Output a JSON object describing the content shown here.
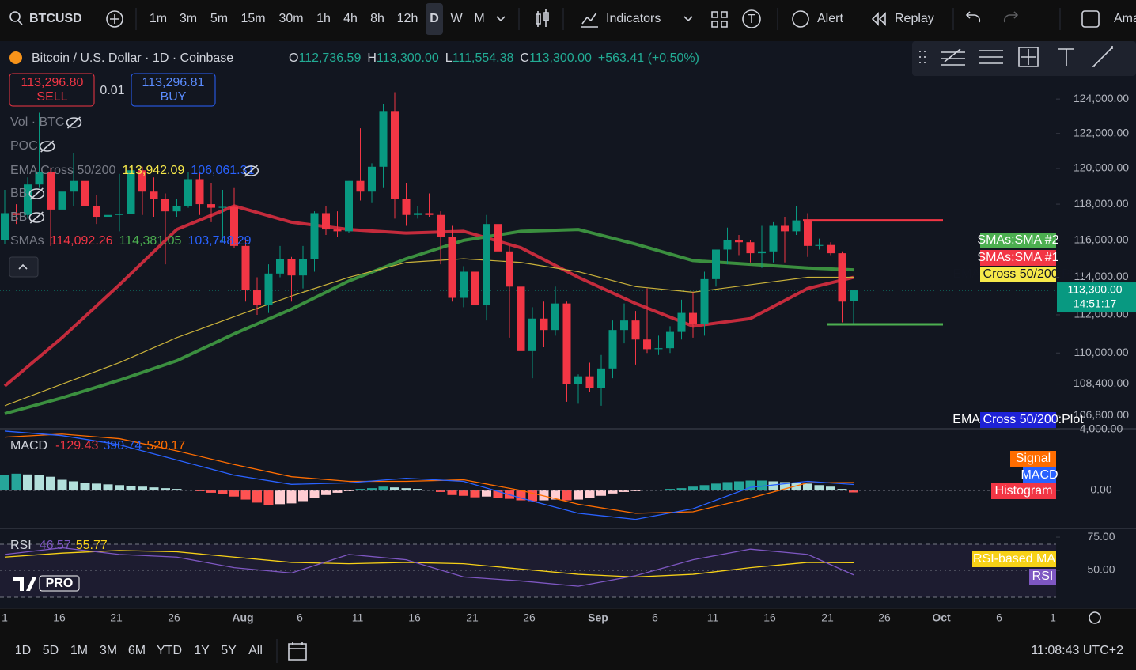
{
  "toolbar": {
    "symbol": "BTCUSD",
    "intervals": [
      "1m",
      "3m",
      "5m",
      "15m",
      "30m",
      "1h",
      "4h",
      "8h",
      "12h",
      "D",
      "W",
      "M"
    ],
    "active_interval": "D",
    "indicators": "Indicators",
    "alert": "Alert",
    "replay": "Replay",
    "account": "Ama"
  },
  "legend": {
    "title": "Bitcoin / U.S. Dollar · 1D · Coinbase",
    "ohlc": [
      {
        "label": "O",
        "value": "112,736.59"
      },
      {
        "label": "H",
        "value": "113,300.00"
      },
      {
        "label": "L",
        "value": "111,554.38"
      },
      {
        "label": "C",
        "value": "113,300.00"
      }
    ],
    "change": "+563.41 (+0.50%)"
  },
  "trade": {
    "sell_price": "113,296.80",
    "sell": "SELL",
    "spread": "0.01",
    "buy_price": "113,296.81",
    "buy": "BUY"
  },
  "indicators": [
    {
      "name": "Vol · BTC",
      "values": []
    },
    {
      "name": "POC",
      "values": []
    },
    {
      "name": "EMA Cross 50/200",
      "values": [
        {
          "text": "113,942.09",
          "color": "#f7e94a"
        },
        {
          "text": "106,061.31",
          "color": "#2962ff"
        }
      ]
    },
    {
      "name": "BB",
      "values": []
    },
    {
      "name": "BB",
      "values": []
    },
    {
      "name": "SMAs",
      "values": [
        {
          "text": "114,092.26",
          "color": "#f23645"
        },
        {
          "text": "114,381.05",
          "color": "#4caf50"
        },
        {
          "text": "103,748.29",
          "color": "#2962ff"
        }
      ]
    }
  ],
  "chart_data": [
    {
      "type": "candlestick",
      "log": true,
      "ylim": [
        106180,
        127430
      ],
      "yticks": [
        {
          "value": 124000,
          "label": "124,000.00"
        },
        {
          "value": 122000,
          "label": "122,000.00"
        },
        {
          "value": 120000,
          "label": "120,000.00"
        },
        {
          "value": 118000,
          "label": "118,000.00"
        },
        {
          "value": 116000,
          "label": "116,000.00"
        },
        {
          "value": 114000,
          "label": "114,000.00"
        },
        {
          "value": 112000,
          "label": "112,000.00"
        },
        {
          "value": 110000,
          "label": "110,000.00"
        },
        {
          "value": 108400,
          "label": "108,400.00"
        },
        {
          "value": 106800,
          "label": "106,800.00"
        }
      ],
      "up_color": "#089981",
      "down_color": "#f23645",
      "candles": [
        [
          116000,
          118800,
          115800,
          117500
        ],
        [
          117500,
          118000,
          116900,
          117400
        ],
        [
          117400,
          119500,
          117200,
          119100
        ],
        [
          119100,
          123200,
          118900,
          119800
        ],
        [
          119800,
          120000,
          115700,
          117700
        ],
        [
          117700,
          119800,
          115800,
          118700
        ],
        [
          118700,
          120900,
          117900,
          119300
        ],
        [
          119300,
          120700,
          117400,
          117900
        ],
        [
          117900,
          118500,
          116900,
          117300
        ],
        [
          117300,
          118800,
          116600,
          117400
        ],
        [
          117400,
          119700,
          116500,
          117450
        ],
        [
          117450,
          120200,
          116200,
          119900
        ],
        [
          119900,
          120100,
          117400,
          118700
        ],
        [
          118700,
          119500,
          117300,
          118300
        ],
        [
          118300,
          118600,
          114700,
          117600
        ],
        [
          117600,
          118300,
          117300,
          117900
        ],
        [
          117900,
          119800,
          117800,
          119400
        ],
        [
          119400,
          119800,
          117400,
          118000
        ],
        [
          118000,
          119200,
          117000,
          117800
        ],
        [
          117800,
          118800,
          115900,
          117850
        ],
        [
          117850,
          118900,
          115600,
          115700
        ],
        [
          115700,
          116100,
          112700,
          113300
        ],
        [
          113300,
          114000,
          112000,
          112500
        ],
        [
          112500,
          114700,
          112100,
          114200
        ],
        [
          114200,
          115700,
          114000,
          115000
        ],
        [
          115000,
          115100,
          112700,
          114100
        ],
        [
          114100,
          115700,
          113400,
          115000
        ],
        [
          115000,
          117600,
          114300,
          117500
        ],
        [
          117500,
          117900,
          116300,
          116600
        ],
        [
          116600,
          117600,
          116200,
          116500
        ],
        [
          116500,
          119300,
          116400,
          119300
        ],
        [
          119300,
          122300,
          118200,
          118700
        ],
        [
          118700,
          120300,
          118100,
          120100
        ],
        [
          120100,
          123700,
          118900,
          123300
        ],
        [
          123300,
          124400,
          117200,
          118300
        ],
        [
          118300,
          119200,
          116800,
          117400
        ],
        [
          117400,
          117900,
          117200,
          117500
        ],
        [
          117500,
          118600,
          117300,
          117400
        ],
        [
          117400,
          117600,
          114700,
          116200
        ],
        [
          116200,
          116800,
          112700,
          112900
        ],
        [
          112900,
          114600,
          112400,
          114300
        ],
        [
          114300,
          114600,
          112400,
          112500
        ],
        [
          112500,
          117400,
          111700,
          116900
        ],
        [
          116900,
          117000,
          114700,
          115400
        ],
        [
          115400,
          115700,
          110800,
          113500
        ],
        [
          113500,
          113700,
          109300,
          110100
        ],
        [
          110100,
          112400,
          108700,
          111800
        ],
        [
          111800,
          112700,
          110300,
          111200
        ],
        [
          111200,
          113500,
          110900,
          112600
        ],
        [
          112600,
          112700,
          107500,
          108400
        ],
        [
          108400,
          108900,
          107400,
          108800
        ],
        [
          108800,
          109500,
          108000,
          108200
        ],
        [
          108200,
          109900,
          107300,
          109200
        ],
        [
          109200,
          111700,
          108700,
          111200
        ],
        [
          111200,
          112600,
          110500,
          111700
        ],
        [
          111700,
          112200,
          109400,
          110700
        ],
        [
          110700,
          113400,
          110000,
          110200
        ],
        [
          110200,
          110900,
          109900,
          110250
        ],
        [
          110250,
          111400,
          110000,
          111100
        ],
        [
          111100,
          112800,
          110700,
          112100
        ],
        [
          112100,
          113200,
          110800,
          111500
        ],
        [
          111500,
          114300,
          110900,
          113900
        ],
        [
          113900,
          115500,
          113500,
          115500
        ],
        [
          115500,
          116700,
          114700,
          116000
        ],
        [
          116000,
          116300,
          115200,
          115900
        ],
        [
          115900,
          116000,
          114800,
          115300
        ],
        [
          115300,
          116800,
          114500,
          115400
        ],
        [
          115400,
          117000,
          114800,
          116800
        ],
        [
          116800,
          117300,
          114800,
          116500
        ],
        [
          116500,
          117900,
          116300,
          117100
        ],
        [
          117100,
          117500,
          115100,
          115700
        ],
        [
          115700,
          116100,
          115500,
          115750
        ],
        [
          115750,
          115900,
          115200,
          115300
        ],
        [
          115300,
          115400,
          111600,
          112700
        ],
        [
          112736.59,
          113300,
          111554.38,
          113300
        ]
      ],
      "series": [
        {
          "name": "SMAs:SMA #1",
          "color": "#c42b3c",
          "width": 4,
          "values": [
            108300,
            110800,
            113600,
            116600,
            117900,
            117000,
            116600,
            116400,
            116500,
            115600,
            114000,
            112600,
            111400,
            111800,
            113400,
            114000
          ]
        },
        {
          "name": "SMAs:SMA #2",
          "color": "#3b8f3f",
          "width": 4,
          "values": [
            106900,
            107700,
            108600,
            109600,
            111000,
            112300,
            113800,
            115000,
            116000,
            116500,
            116600,
            115800,
            114900,
            114700,
            114500,
            114400
          ]
        },
        {
          "name": "EMA Cross 50/200:Plot",
          "color": "#c9b13a",
          "width": 1.2,
          "values": [
            107300,
            108400,
            109500,
            110800,
            111900,
            113000,
            114000,
            114800,
            115000,
            114800,
            114300,
            113500,
            113200,
            113600,
            114000,
            114000
          ]
        }
      ],
      "axis_tags": [
        {
          "label": "SMAs:SMA #2",
          "color": "#4caf50",
          "text_color": "#ffffff"
        },
        {
          "label": "SMAs:SMA #1",
          "color": "#f23645",
          "text_color": "#ffffff"
        },
        {
          "label": "EMA Cross 50/200:Plot",
          "color": "#f7e94a",
          "text_color": "#131722"
        },
        {
          "label": "EMA Cross 50/200:Plot",
          "color": "#1e22d6",
          "text_color": "#ffffff"
        }
      ],
      "drawings": [
        {
          "value": 117100,
          "color": "#f23645"
        },
        {
          "value": 111500,
          "color": "#4caf50"
        }
      ],
      "current_price": {
        "value": 113300,
        "label": "113,300.00"
      },
      "countdown": "14:51:17"
    },
    {
      "type": "macd",
      "title": "MACD",
      "legend_values": [
        {
          "text": "-129.43",
          "color": "#f23645"
        },
        {
          "text": "390.74",
          "color": "#2962ff"
        },
        {
          "text": "520.17",
          "color": "#ff6d00"
        }
      ],
      "ylim": [
        -2440,
        4000
      ],
      "yticks": [
        {
          "value": 4000,
          "label": "4,000.00"
        },
        {
          "value": 0,
          "label": "0.00"
        }
      ],
      "series": [
        {
          "name": "Signal",
          "color": "#ff6d00",
          "values": [
            3500,
            3700,
            3400,
            2600,
            1700,
            900,
            600,
            600,
            700,
            0,
            -900,
            -1500,
            -1400,
            -500,
            500,
            520.17
          ]
        },
        {
          "name": "MACD",
          "color": "#2962ff",
          "values": [
            3900,
            3600,
            3000,
            2000,
            1000,
            400,
            500,
            800,
            600,
            -500,
            -1500,
            -1900,
            -1200,
            200,
            600,
            390.74
          ]
        },
        {
          "name": "Histogram",
          "color": "#f23645",
          "values": [
            1000,
            1100,
            1050,
            1000,
            900,
            700,
            600,
            500,
            450,
            400,
            350,
            300,
            250,
            200,
            150,
            100,
            50,
            -50,
            -150,
            -250,
            -400,
            -600,
            -800,
            -950,
            -900,
            -850,
            -700,
            -500,
            -300,
            -150,
            -50,
            100,
            150,
            250,
            200,
            150,
            100,
            50,
            -100,
            -300,
            -350,
            -450,
            -400,
            -500,
            -550,
            -650,
            -700,
            -650,
            -600,
            -650,
            -600,
            -500,
            -350,
            -200,
            -100,
            -50,
            0,
            50,
            100,
            150,
            250,
            350,
            450,
            550,
            600,
            650,
            650,
            600,
            550,
            500,
            450,
            350,
            250,
            100,
            -129.43
          ]
        }
      ]
    },
    {
      "type": "rsi",
      "title": "RSI",
      "legend_values": [
        {
          "text": "46.57",
          "color": "#7e57c2"
        },
        {
          "text": "55.77",
          "color": "#f7d117"
        }
      ],
      "ylim": [
        22,
        81
      ],
      "yticks": [
        {
          "value": 75,
          "label": "75.00"
        },
        {
          "value": 50,
          "label": "50.00"
        }
      ],
      "series": [
        {
          "name": "RSI-based MA",
          "color": "#f7d117",
          "values": [
            60,
            63,
            65,
            64,
            60,
            56,
            55,
            56,
            55,
            51,
            47,
            45,
            47,
            52,
            56,
            55.77
          ]
        },
        {
          "name": "RSI",
          "color": "#7e57c2",
          "values": [
            62,
            67,
            62,
            60,
            52,
            48,
            62,
            58,
            45,
            42,
            38,
            46,
            58,
            66,
            62,
            46.57
          ]
        }
      ]
    }
  ],
  "x_axis": {
    "labels": [
      "1",
      "16",
      "21",
      "26",
      "Aug",
      "6",
      "11",
      "16",
      "21",
      "26",
      "Sep",
      "6",
      "11",
      "16",
      "21",
      "26",
      "Oct",
      "6",
      "1"
    ]
  },
  "logo": "PRO",
  "footer": {
    "ranges": [
      "1D",
      "5D",
      "1M",
      "3M",
      "6M",
      "YTD",
      "1Y",
      "5Y",
      "All"
    ],
    "clock": "11:08:43 UTC+2"
  }
}
